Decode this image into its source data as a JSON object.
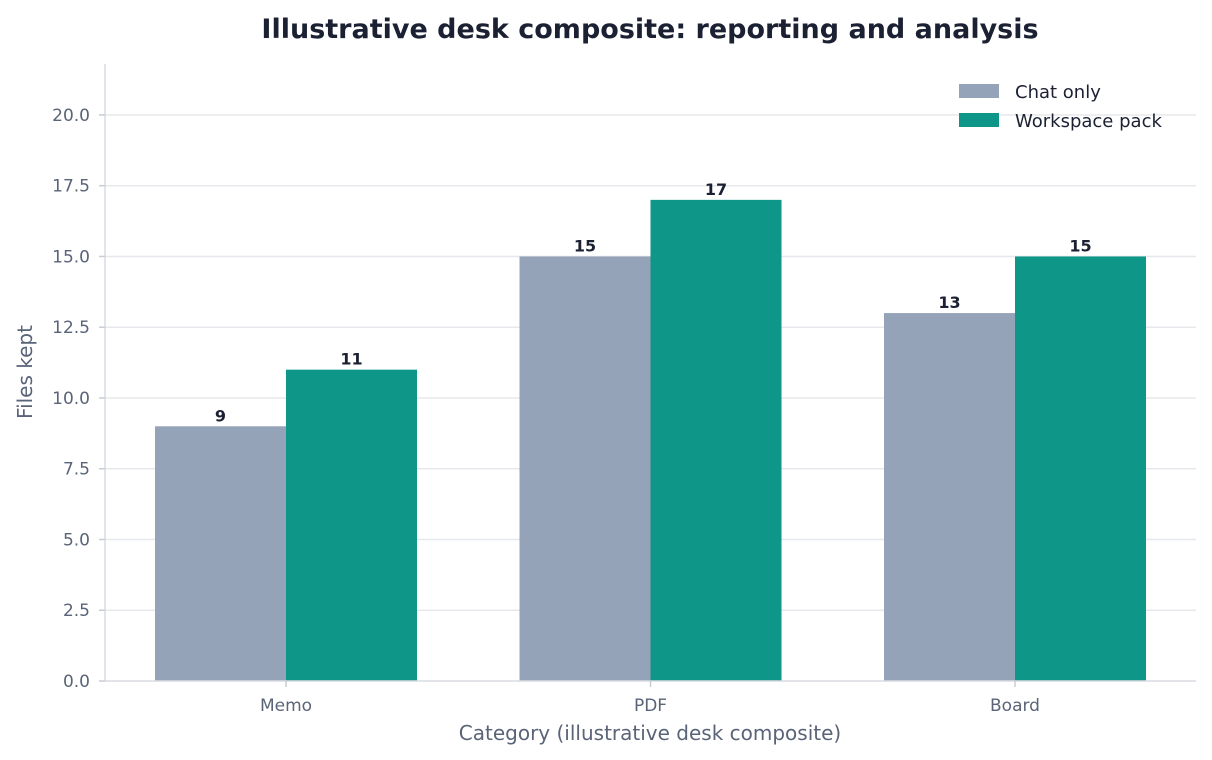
{
  "chart_data": {
    "type": "bar",
    "title": "Illustrative desk composite: reporting and analysis",
    "xlabel": "Category (illustrative desk composite)",
    "ylabel": "Files kept",
    "categories": [
      "Memo",
      "PDF",
      "Board"
    ],
    "series": [
      {
        "name": "Chat only",
        "values": [
          9,
          15,
          13
        ],
        "color": "#95a3b8"
      },
      {
        "name": "Workspace pack",
        "values": [
          11,
          17,
          15
        ],
        "color": "#0e9688"
      }
    ],
    "ylim": [
      0,
      21.8
    ],
    "yticks": [
      "0.0",
      "2.5",
      "5.0",
      "7.5",
      "10.0",
      "12.5",
      "15.0",
      "17.5",
      "20.0"
    ],
    "grid": "horizontal",
    "legend": "top-right",
    "data_labels": true
  }
}
